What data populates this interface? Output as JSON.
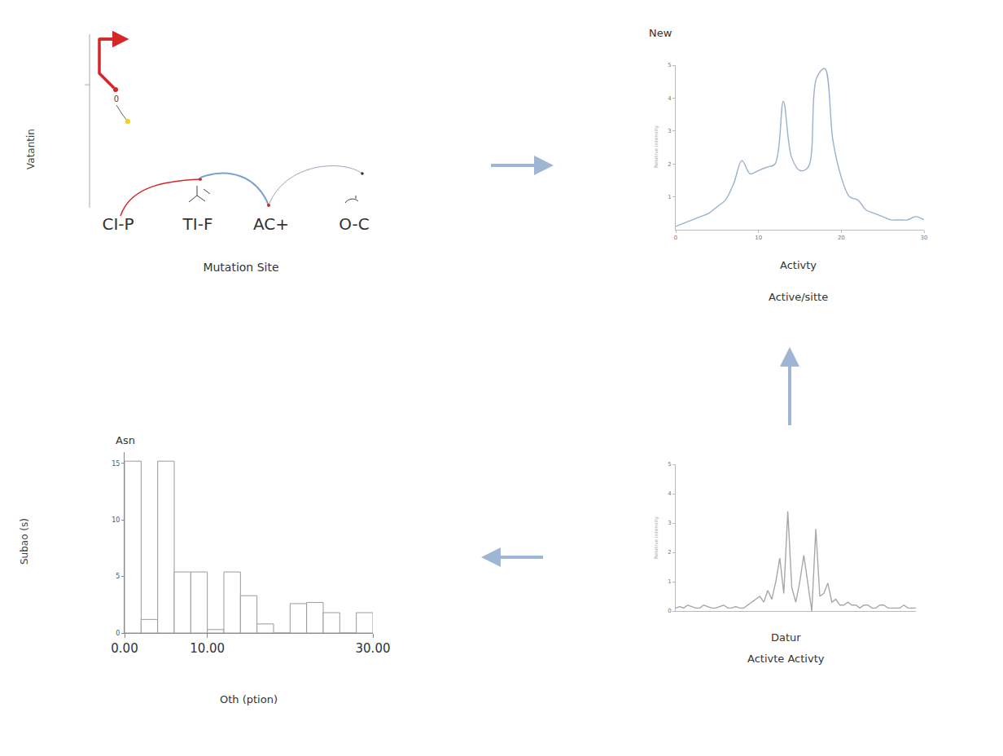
{
  "diagram": {
    "ylabel": "Vatantin",
    "marker_label": "0",
    "nodes": [
      "CI-P",
      "TI-F",
      "AC+",
      "O-C"
    ],
    "xlabel": "Mutation Site"
  },
  "chart_data": [
    {
      "type": "line",
      "title": "New",
      "ylabel": "Relative intensity",
      "xlabel": "Activty",
      "subtitle": "Active/sitte",
      "x": [
        0,
        1,
        2,
        3,
        4,
        5,
        6,
        7,
        8,
        9,
        10,
        11,
        12,
        13,
        14,
        15,
        16,
        17,
        18,
        19,
        20,
        21,
        22,
        23,
        24,
        25,
        26,
        27,
        28,
        29,
        30
      ],
      "values": [
        0.1,
        0.2,
        0.3,
        0.4,
        0.5,
        0.7,
        0.9,
        1.4,
        2.1,
        1.7,
        1.8,
        1.9,
        2.0,
        3.9,
        2.2,
        1.8,
        1.9,
        4.6,
        4.9,
        2.7,
        1.6,
        1.0,
        0.9,
        0.6,
        0.5,
        0.4,
        0.3,
        0.3,
        0.3,
        0.4,
        0.3
      ],
      "color": "#9bb0cc",
      "xlim": [
        0,
        30
      ],
      "xticks": [
        0,
        10,
        20,
        30
      ],
      "ylim": [
        0,
        5
      ],
      "yticks": [
        1,
        2,
        3,
        4,
        5
      ],
      "grid": false
    },
    {
      "type": "line",
      "ylabel": "Relative intensity",
      "xlabel": "Datur",
      "subtitle": "Activte Activty",
      "x": [
        0,
        0.5,
        1,
        1.5,
        2,
        2.5,
        3,
        3.5,
        4,
        4.5,
        5,
        5.5,
        6,
        6.5,
        7,
        7.5,
        8,
        8.5,
        9,
        9.5,
        10,
        10.5,
        11,
        11.5,
        12,
        12.5,
        13,
        13.5,
        14,
        14.5,
        15,
        15.5,
        16,
        16.5,
        17,
        17.5,
        18,
        18.5,
        19,
        19.5,
        20,
        20.5,
        21,
        21.5,
        22,
        22.5,
        23,
        23.5,
        24,
        24.5,
        25,
        25.5,
        26,
        26.5,
        27,
        27.5,
        28,
        28.5,
        29,
        29.5,
        30
      ],
      "values": [
        0.1,
        0.15,
        0.1,
        0.2,
        0.15,
        0.1,
        0.1,
        0.2,
        0.15,
        0.1,
        0.1,
        0.15,
        0.2,
        0.1,
        0.1,
        0.15,
        0.1,
        0.1,
        0.2,
        0.3,
        0.4,
        0.5,
        0.3,
        0.7,
        0.4,
        1.0,
        1.8,
        0.6,
        3.4,
        0.8,
        0.3,
        1.0,
        1.9,
        0.9,
        0.0,
        2.8,
        0.5,
        0.6,
        0.95,
        0.3,
        0.4,
        0.2,
        0.2,
        0.3,
        0.2,
        0.2,
        0.1,
        0.2,
        0.2,
        0.1,
        0.1,
        0.2,
        0.2,
        0.1,
        0.1,
        0.1,
        0.1,
        0.2,
        0.1,
        0.1,
        0.1
      ],
      "color": "#a8a8a8",
      "xlim": [
        0,
        30
      ],
      "ylim": [
        0,
        5
      ],
      "yticks": [
        0,
        1,
        2,
        3,
        4,
        5
      ],
      "tick_labels": "y",
      "grid": false
    },
    {
      "type": "bar",
      "title": "Asn",
      "ylabel": "Subao (s)",
      "xlabel": "Oth (ption)",
      "bins": [
        0,
        2,
        4,
        6,
        8,
        10,
        12,
        14,
        16,
        18,
        20,
        22,
        24,
        26,
        28,
        30
      ],
      "values": [
        15.2,
        1.2,
        15.2,
        5.4,
        5.4,
        0.3,
        5.4,
        3.3,
        0.8,
        0,
        2.6,
        2.7,
        1.8,
        0,
        1.8
      ],
      "color": "#ffffff",
      "xlim": [
        0,
        30
      ],
      "xticks": [
        {
          "value": 0,
          "label": "0.00"
        },
        {
          "value": 10,
          "label": "10.00"
        },
        {
          "value": 30,
          "label": "30.00"
        }
      ],
      "ylim": [
        0,
        16
      ],
      "yticks": [
        0,
        5,
        10,
        15
      ],
      "grid": false
    }
  ]
}
